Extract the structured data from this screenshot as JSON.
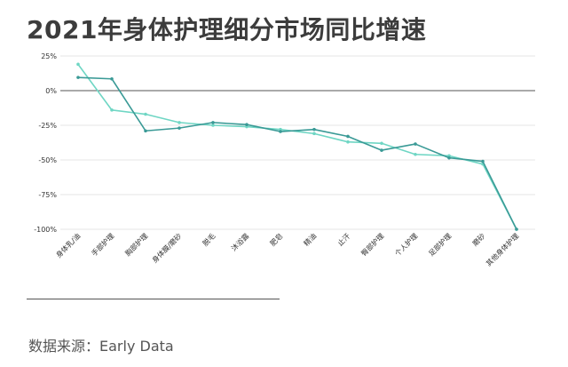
{
  "title": "2021年身体护理细分市场同比增速",
  "source": "数据来源：Early Data",
  "chart_data": {
    "type": "line",
    "title": "2021年身体护理细分市场同比增速",
    "categories": [
      "身体乳/油",
      "手部护理",
      "胸部护理",
      "身体膜/磨砂",
      "脱毛",
      "沐浴露",
      "肥皂",
      "精油",
      "止汗",
      "臀部护理",
      "个人护理",
      "足部护理",
      "磨砂",
      "其他身体护理"
    ],
    "y_ticks": [
      "25%",
      "0%",
      "-25%",
      "-50%",
      "-75%",
      "-100%"
    ],
    "ylim": [
      -100,
      25
    ],
    "grid": true,
    "series": [
      {
        "values": [
          9.5,
          8.5,
          -29,
          -27,
          -23,
          -24.5,
          -29.5,
          -28,
          -33,
          -43,
          -38.5,
          -48.5,
          -51,
          -100
        ],
        "color": "#3a9a96"
      },
      {
        "values": [
          19,
          -14,
          -17,
          -23,
          -25,
          -26,
          -28,
          -31,
          -37,
          -38,
          -46,
          -47,
          -53,
          -100
        ],
        "color": "#6fd6c4"
      }
    ]
  }
}
